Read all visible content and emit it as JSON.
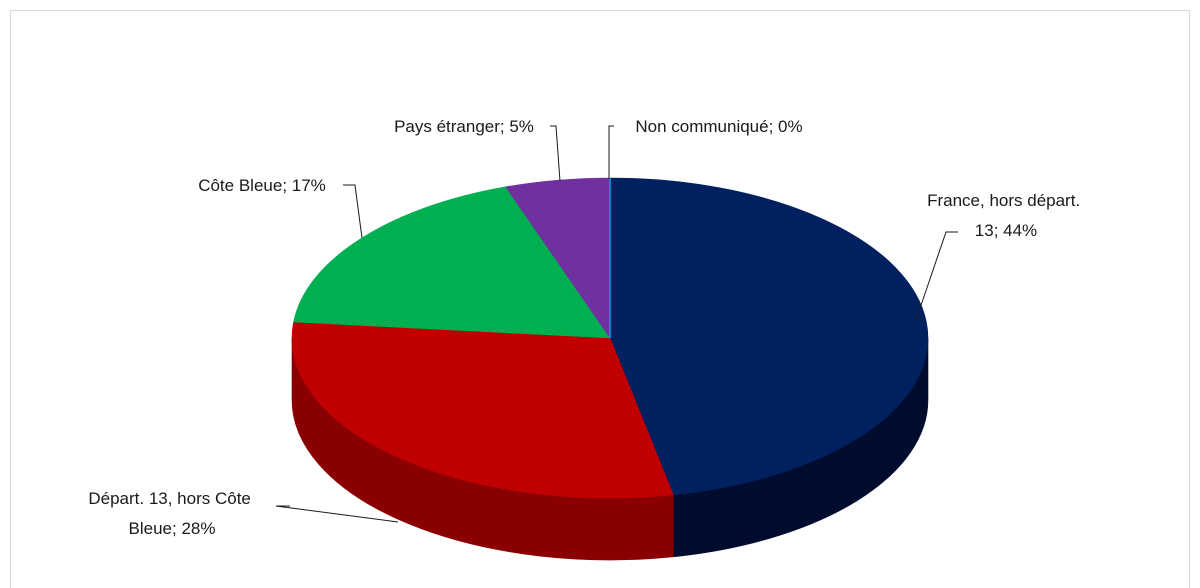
{
  "chart_data": {
    "type": "pie",
    "style": "3d",
    "title": "",
    "slices": [
      {
        "label": "France, hors départ. 13",
        "value": 44,
        "text": "44%",
        "color": "#00205f",
        "side_color": "#000c2e"
      },
      {
        "label": "Départ. 13, hors Côte Bleue",
        "value": 28,
        "text": "28%",
        "color": "#c00000",
        "side_color": "#8a0000"
      },
      {
        "label": "Côte Bleue",
        "value": 17,
        "text": "17%",
        "color": "#00b050",
        "side_color": "#007a36"
      },
      {
        "label": "Pays étranger",
        "value": 5,
        "text": "5%",
        "color": "#7030a0",
        "side_color": "#4c1f70"
      },
      {
        "label": "Non communiqué",
        "value": 0,
        "text": "0%",
        "color": "#00b0f0",
        "side_color": "#0080b0"
      }
    ],
    "data_labels": [
      {
        "lines": [
          "France, hors départ.",
          "13; 44%"
        ]
      },
      {
        "lines": [
          "Départ. 13, hors Côte",
          "Bleue; 28%"
        ]
      },
      {
        "lines": [
          "Côte Bleue; 17%"
        ]
      },
      {
        "lines": [
          "Pays étranger; 5%"
        ]
      },
      {
        "lines": [
          "Non communiqué; 0%"
        ]
      }
    ]
  }
}
